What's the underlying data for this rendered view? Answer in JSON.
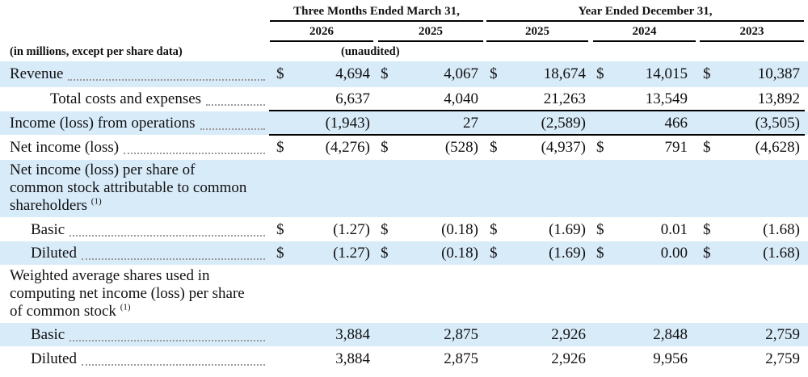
{
  "header": {
    "group_quarterly": "Three Months Ended March 31,",
    "group_annual": "Year Ended December 31,",
    "columns": [
      "2026",
      "2025",
      "2025",
      "2024",
      "2023"
    ],
    "units_note": "(in millions, except per share data)",
    "unaudited_note": "(unaudited)"
  },
  "rows": [
    {
      "label": "Revenue",
      "shade": true,
      "dollar": true,
      "values": [
        "4,694",
        "4,067",
        "18,674",
        "14,015",
        "10,387"
      ]
    },
    {
      "label": "Total costs and expenses",
      "indent": true,
      "values": [
        "6,637",
        "4,040",
        "21,263",
        "13,549",
        "13,892"
      ]
    },
    {
      "label": "Income (loss) from operations",
      "shade": true,
      "values": [
        "(1,943)",
        "27",
        "(2,589)",
        "466",
        "(3,505)"
      ]
    },
    {
      "label": "Net income (loss)",
      "dollar": true,
      "values": [
        "(4,276)",
        "(528)",
        "(4,937)",
        "791",
        "(4,628)"
      ]
    },
    {
      "label": "Net income (loss) per share of common stock attributable to common shareholders",
      "footnote": "(1)",
      "shade": true,
      "header_row": true
    },
    {
      "label": "Basic",
      "sub": true,
      "dollar": true,
      "values": [
        "(1.27)",
        "(0.18)",
        "(1.69)",
        "0.01",
        "(1.68)"
      ]
    },
    {
      "label": "Diluted",
      "sub": true,
      "shade": true,
      "dollar": true,
      "values": [
        "(1.27)",
        "(0.18)",
        "(1.69)",
        "0.00",
        "(1.68)"
      ]
    },
    {
      "label": "Weighted average shares used in computing net income (loss) per share of common stock",
      "footnote": "(1)",
      "header_row": true
    },
    {
      "label": "Basic",
      "sub": true,
      "shade": true,
      "values": [
        "3,884",
        "2,875",
        "2,926",
        "2,848",
        "2,759"
      ]
    },
    {
      "label": "Diluted",
      "sub": true,
      "values": [
        "3,884",
        "2,875",
        "2,926",
        "9,956",
        "2,759"
      ]
    }
  ],
  "currency_symbol": "$"
}
